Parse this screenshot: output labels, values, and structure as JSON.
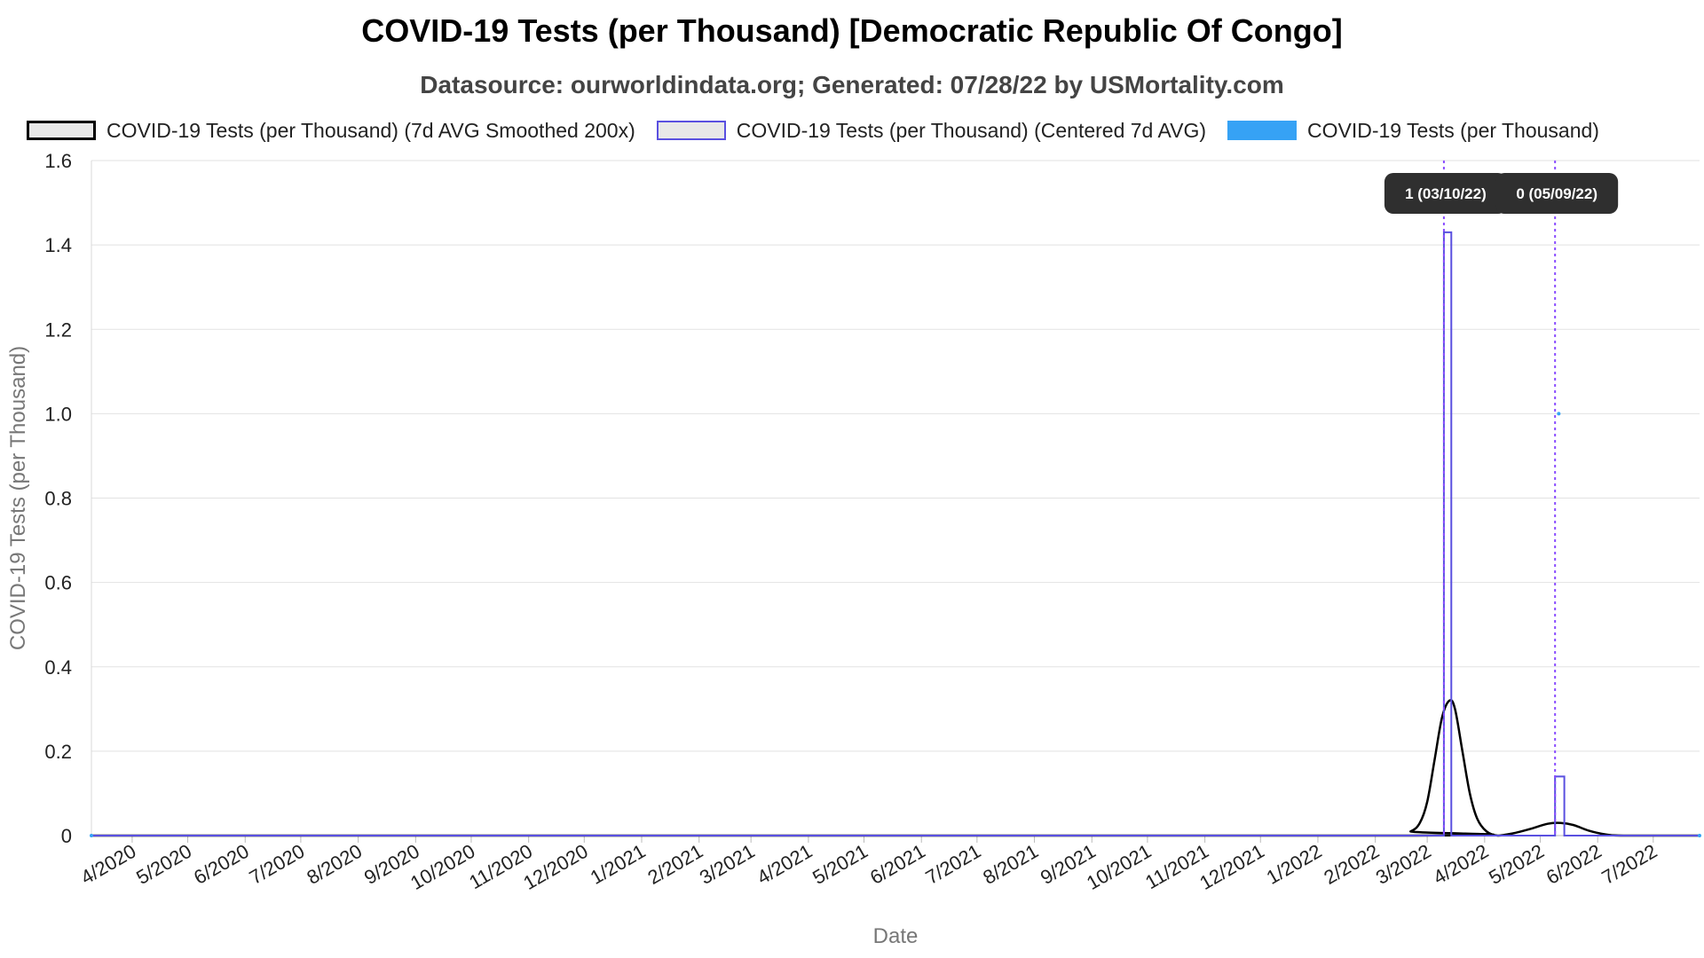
{
  "title": "COVID-19 Tests (per Thousand) [Democratic Republic Of Congo]",
  "subtitle": "Datasource: ourworldindata.org; Generated: 07/28/22 by USMortality.com",
  "legend": [
    {
      "label": "COVID-19 Tests (per Thousand) (7d AVG Smoothed 200x)",
      "color": "#000000"
    },
    {
      "label": "COVID-19 Tests (per Thousand) (Centered 7d AVG)",
      "color": "#5a50e0"
    },
    {
      "label": "COVID-19 Tests (per Thousand)",
      "color": "#36a2f5"
    }
  ],
  "chart_data": {
    "type": "line",
    "xlabel": "Date",
    "ylabel": "COVID-19 Tests (per Thousand)",
    "xlim": [
      "2020-03-10",
      "2022-07-26"
    ],
    "ylim": [
      0,
      1.6
    ],
    "yticks": [
      "0",
      "0.2",
      "0.4",
      "0.6",
      "0.8",
      "1.0",
      "1.2",
      "1.4",
      "1.6"
    ],
    "xticks": [
      {
        "label": "4/2020",
        "date": "2020-04-01"
      },
      {
        "label": "5/2020",
        "date": "2020-05-01"
      },
      {
        "label": "6/2020",
        "date": "2020-06-01"
      },
      {
        "label": "7/2020",
        "date": "2020-07-01"
      },
      {
        "label": "8/2020",
        "date": "2020-08-01"
      },
      {
        "label": "9/2020",
        "date": "2020-09-01"
      },
      {
        "label": "10/2020",
        "date": "2020-10-01"
      },
      {
        "label": "11/2020",
        "date": "2020-11-01"
      },
      {
        "label": "12/2020",
        "date": "2020-12-01"
      },
      {
        "label": "1/2021",
        "date": "2021-01-01"
      },
      {
        "label": "2/2021",
        "date": "2021-02-01"
      },
      {
        "label": "3/2021",
        "date": "2021-03-01"
      },
      {
        "label": "4/2021",
        "date": "2021-04-01"
      },
      {
        "label": "5/2021",
        "date": "2021-05-01"
      },
      {
        "label": "6/2021",
        "date": "2021-06-01"
      },
      {
        "label": "7/2021",
        "date": "2021-07-01"
      },
      {
        "label": "8/2021",
        "date": "2021-08-01"
      },
      {
        "label": "9/2021",
        "date": "2021-09-01"
      },
      {
        "label": "10/2021",
        "date": "2021-10-01"
      },
      {
        "label": "11/2021",
        "date": "2021-11-01"
      },
      {
        "label": "12/2021",
        "date": "2021-12-01"
      },
      {
        "label": "1/2022",
        "date": "2022-01-01"
      },
      {
        "label": "2/2022",
        "date": "2022-02-01"
      },
      {
        "label": "3/2022",
        "date": "2022-03-01"
      },
      {
        "label": "4/2022",
        "date": "2022-04-01"
      },
      {
        "label": "5/2022",
        "date": "2022-05-01"
      },
      {
        "label": "6/2022",
        "date": "2022-06-01"
      },
      {
        "label": "7/2022",
        "date": "2022-07-01"
      }
    ],
    "grid": true,
    "legend_position": "top",
    "series": [
      {
        "name": "COVID-19 Tests (per Thousand) (7d AVG Smoothed 200x)",
        "color": "#000000",
        "style": "smooth",
        "points": [
          [
            "2020-03-10",
            0
          ],
          [
            "2022-02-10",
            0
          ],
          [
            "2022-02-20",
            0.01
          ],
          [
            "2022-02-25",
            0.03
          ],
          [
            "2022-03-01",
            0.08
          ],
          [
            "2022-03-05",
            0.18
          ],
          [
            "2022-03-09",
            0.28
          ],
          [
            "2022-03-13",
            0.32
          ],
          [
            "2022-03-16",
            0.3
          ],
          [
            "2022-03-20",
            0.2
          ],
          [
            "2022-03-24",
            0.1
          ],
          [
            "2022-03-28",
            0.04
          ],
          [
            "2022-04-02",
            0.01
          ],
          [
            "2022-04-08",
            0.0
          ],
          [
            "2022-04-16",
            0.005
          ],
          [
            "2022-04-25",
            0.015
          ],
          [
            "2022-05-05",
            0.028
          ],
          [
            "2022-05-12",
            0.03
          ],
          [
            "2022-05-19",
            0.025
          ],
          [
            "2022-05-27",
            0.012
          ],
          [
            "2022-06-05",
            0.003
          ],
          [
            "2022-06-15",
            0
          ],
          [
            "2022-07-26",
            0
          ]
        ]
      },
      {
        "name": "COVID-19 Tests (per Thousand) (Centered 7d AVG)",
        "color": "#5a50e0",
        "style": "step",
        "points": [
          [
            "2020-03-10",
            0
          ],
          [
            "2022-03-10",
            0
          ],
          [
            "2022-03-10",
            1.43
          ],
          [
            "2022-03-14",
            1.43
          ],
          [
            "2022-03-14",
            0
          ],
          [
            "2022-05-09",
            0
          ],
          [
            "2022-05-09",
            0.14
          ],
          [
            "2022-05-14",
            0.14
          ],
          [
            "2022-05-14",
            0
          ],
          [
            "2022-07-26",
            0
          ]
        ]
      },
      {
        "name": "COVID-19 Tests (per Thousand)",
        "color": "#36a2f5",
        "style": "points",
        "points": [
          [
            "2020-03-10",
            0
          ],
          [
            "2022-05-11",
            1.0
          ],
          [
            "2022-07-26",
            0
          ]
        ]
      }
    ],
    "annotations": [
      {
        "label": "1 (03/10/22)",
        "date": "2022-03-10"
      },
      {
        "label": "0 (05/09/22)",
        "date": "2022-05-09"
      }
    ]
  }
}
